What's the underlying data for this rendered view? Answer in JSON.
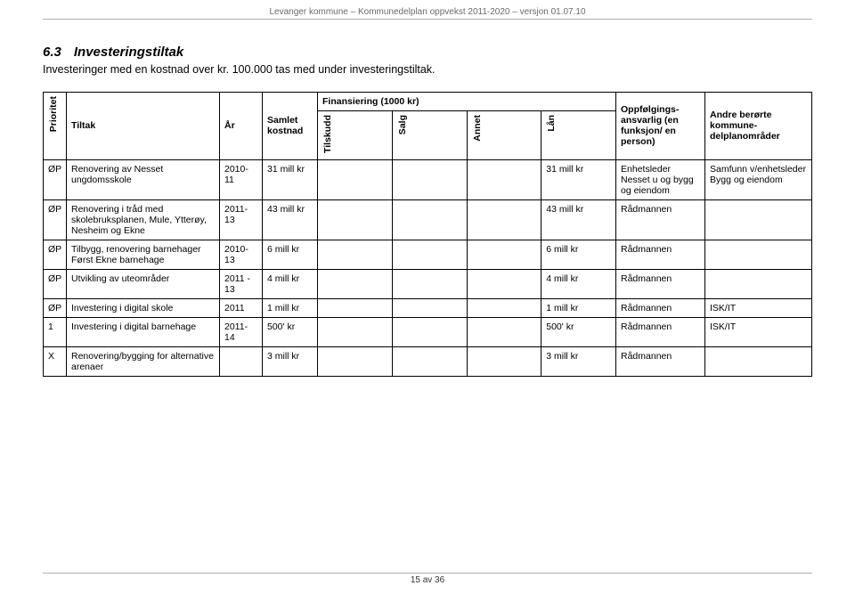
{
  "header": {
    "top_text": "Levanger kommune – Kommunedelplan oppvekst 2011-2020 – versjon 01.07.10"
  },
  "section": {
    "number": "6.3",
    "title": "Investeringstiltak",
    "subtext": "Investeringer med en kostnad over kr. 100.000 tas med under investeringstiltak."
  },
  "table": {
    "headers": {
      "prioritet": "Prioritet",
      "tiltak": "Tiltak",
      "ar": "År",
      "samlet_kostnad": "Samlet kostnad",
      "finansiering_group": "Finansiering (1000 kr)",
      "tilskudd": "Tilskudd",
      "salg": "Salg",
      "annet": "Annet",
      "lan": "Lån",
      "oppfolging": "Oppfølgings-ansvarlig (en funksjon/ en person)",
      "andre": "Andre berørte kommune-delplanområder"
    },
    "rows": [
      {
        "prioritet": "ØP",
        "tiltak": "Renovering av Nesset ungdomsskole",
        "ar": "2010-11",
        "samlet": "31 mill kr",
        "tilskudd": "",
        "salg": "",
        "annet": "",
        "lan": "31 mill kr",
        "oppf": "Enhetsleder Nesset u og bygg og eiendom",
        "andre": "Samfunn v/enhetsleder Bygg og eiendom"
      },
      {
        "prioritet": "ØP",
        "tiltak": "Renovering i tråd med skolebruksplanen, Mule, Ytterøy, Nesheim og Ekne",
        "ar": "2011-13",
        "samlet": "43 mill kr",
        "tilskudd": "",
        "salg": "",
        "annet": "",
        "lan": "43 mill kr",
        "oppf": "Rådmannen",
        "andre": ""
      },
      {
        "prioritet": "ØP",
        "tiltak": "Tilbygg, renovering barnehager Først Ekne barnehage",
        "ar": "2010-13",
        "samlet": "6 mill kr",
        "tilskudd": "",
        "salg": "",
        "annet": "",
        "lan": "6 mill kr",
        "oppf": "Rådmannen",
        "andre": ""
      },
      {
        "prioritet": "ØP",
        "tiltak": "Utvikling av uteområder",
        "ar": "2011 - 13",
        "samlet": "4 mill kr",
        "tilskudd": "",
        "salg": "",
        "annet": "",
        "lan": "4 mill kr",
        "oppf": "Rådmannen",
        "andre": ""
      },
      {
        "prioritet": "ØP",
        "tiltak": "Investering i digital skole",
        "ar": "2011",
        "samlet": "1 mill kr",
        "tilskudd": "",
        "salg": "",
        "annet": "",
        "lan": "1 mill kr",
        "oppf": "Rådmannen",
        "andre": "ISK/IT"
      },
      {
        "prioritet": "1",
        "tiltak": "Investering i digital barnehage",
        "ar": "2011-14",
        "samlet": "500' kr",
        "tilskudd": "",
        "salg": "",
        "annet": "",
        "lan": "500' kr",
        "oppf": "Rådmannen",
        "andre": "ISK/IT"
      },
      {
        "prioritet": "X",
        "tiltak": "Renovering/bygging for alternative arenaer",
        "ar": "",
        "samlet": "3 mill kr",
        "tilskudd": "",
        "salg": "",
        "annet": "",
        "lan": "3 mill kr",
        "oppf": "Rådmannen",
        "andre": ""
      }
    ]
  },
  "footer": {
    "page_text": "15 av 36"
  }
}
